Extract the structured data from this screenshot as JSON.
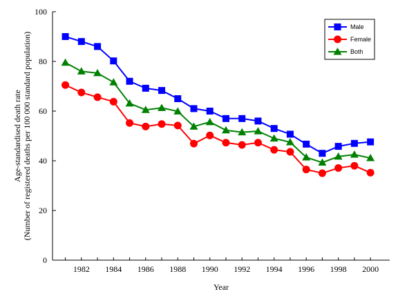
{
  "chart_data": {
    "type": "line",
    "xlabel": "Year",
    "ylabel_line1": "Age-standardised death rate",
    "ylabel_line2": "(Number of registered deaths per 100 000 standard population)",
    "xlim": [
      1980.2,
      2001.2
    ],
    "ylim": [
      0,
      100
    ],
    "yticks": [
      0,
      20,
      40,
      60,
      80,
      100
    ],
    "xticks": [
      1982,
      1984,
      1986,
      1988,
      1990,
      1992,
      1994,
      1996,
      1998,
      2000
    ],
    "grid": false,
    "legend_position": "top-right",
    "x": [
      1981,
      1982,
      1983,
      1984,
      1985,
      1986,
      1987,
      1988,
      1989,
      1990,
      1991,
      1992,
      1993,
      1994,
      1995,
      1996,
      1997,
      1998,
      1999,
      2000
    ],
    "series": [
      {
        "name": "Male",
        "color": "#0000ff",
        "marker": "square",
        "values": [
          90,
          88,
          86,
          80.2,
          72,
          69.2,
          68.3,
          65,
          61,
          60,
          57,
          57,
          56,
          53,
          50.7,
          46.7,
          43,
          45.8,
          47,
          47.6
        ]
      },
      {
        "name": "Female",
        "color": "#ff0000",
        "marker": "circle",
        "values": [
          70.5,
          67.5,
          65.6,
          63.8,
          55.2,
          53.8,
          54.8,
          54.2,
          46.9,
          50.2,
          47.3,
          46.4,
          47.3,
          44.4,
          43.6,
          36.5,
          35,
          37.1,
          38,
          35.2
        ]
      },
      {
        "name": "Both",
        "color": "#008000",
        "marker": "triangle",
        "values": [
          79.5,
          76,
          75.3,
          71.6,
          63.1,
          60.5,
          61.3,
          59.9,
          53.8,
          55.6,
          52.3,
          51.5,
          51.9,
          49,
          47.5,
          41.4,
          39.3,
          41.7,
          42.5,
          41.1
        ]
      }
    ]
  }
}
